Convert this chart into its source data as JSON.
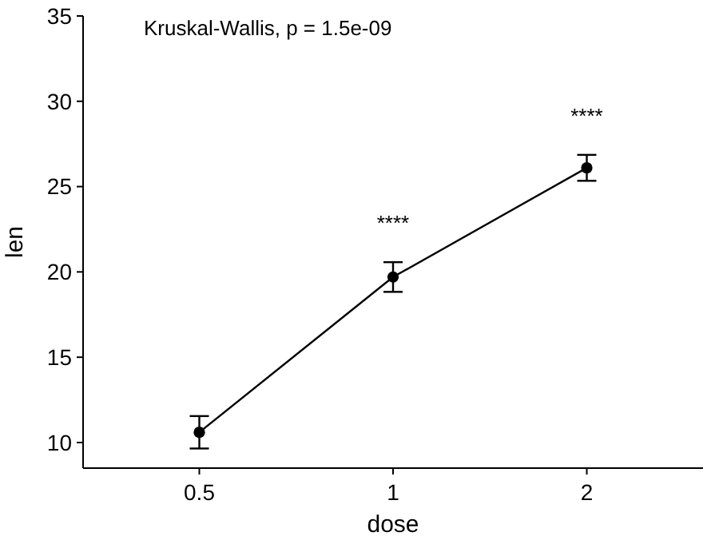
{
  "chart_data": {
    "type": "line",
    "xlabel": "dose",
    "ylabel": "len",
    "categories": [
      "0.5",
      "1",
      "2"
    ],
    "values": [
      10.6,
      19.7,
      26.1
    ],
    "errors": [
      0.95,
      0.87,
      0.76
    ],
    "color": "#000000",
    "ylim": [
      8.5,
      35
    ],
    "yticks": [
      10,
      15,
      20,
      25,
      30,
      35
    ],
    "marker": "circle",
    "line_style": "solid",
    "grid": false,
    "annotations": [
      "Kruskal-Wallis, p = 1.5e-09",
      "****",
      "****"
    ]
  }
}
